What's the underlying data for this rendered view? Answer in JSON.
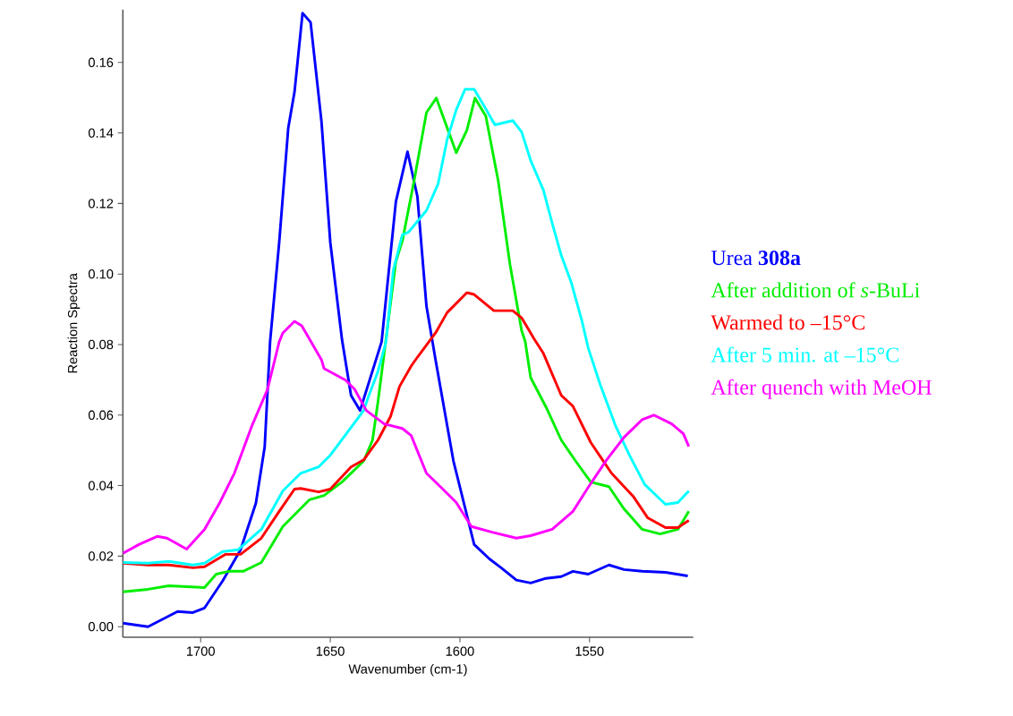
{
  "chart_data": {
    "type": "line",
    "xlabel": "Wavenumber (cm-1)",
    "ylabel": "Reaction Spectra",
    "xlim": [
      1730,
      1510
    ],
    "ylim": [
      -0.003,
      0.175
    ],
    "xticks": [
      1700,
      1650,
      1600,
      1550
    ],
    "yticks": [
      {
        "value": 0,
        "label": "0.00"
      },
      {
        "value": 0.02,
        "label": "0.02"
      },
      {
        "value": 0.04,
        "label": "0.04"
      },
      {
        "value": 0.06,
        "label": "0.06"
      },
      {
        "value": 0.08,
        "label": "0.08"
      },
      {
        "value": 0.1,
        "label": "0.10"
      },
      {
        "value": 0.12,
        "label": "0.12"
      },
      {
        "value": 0.14,
        "label": "0.14"
      },
      {
        "value": 0.16,
        "label": "0.16"
      }
    ],
    "legend": "right",
    "series": [
      {
        "name": "Urea **308a**",
        "color": "#0000ff",
        "x": [
          1730,
          1720.3,
          1708.9,
          1703,
          1698.5,
          1691.5,
          1684.6,
          1678.7,
          1675.3,
          1673.2,
          1669.7,
          1666.2,
          1663.8,
          1660.7,
          1657.6,
          1653.4,
          1650,
          1645.5,
          1642,
          1638.5,
          1630.2,
          1628,
          1624.7,
          1620.2,
          1616.4,
          1612.9,
          1609.4,
          1602.5,
          1594.5,
          1588.6,
          1584.1,
          1578.2,
          1572.7,
          1566.8,
          1560.9,
          1556.4,
          1550.5,
          1542.5,
          1536.7,
          1529.7,
          1520.7,
          1512.1
        ],
        "values": [
          0.001,
          0.0,
          0.0043,
          0.004,
          0.0053,
          0.013,
          0.0218,
          0.035,
          0.051,
          0.081,
          0.109,
          0.1415,
          0.1516,
          0.174,
          0.1714,
          0.1433,
          0.109,
          0.0815,
          0.0656,
          0.0613,
          0.0808,
          0.0967,
          0.1205,
          0.1347,
          0.122,
          0.0909,
          0.0757,
          0.047,
          0.0233,
          0.0192,
          0.0167,
          0.0132,
          0.0124,
          0.0137,
          0.0142,
          0.0157,
          0.0149,
          0.0175,
          0.0162,
          0.0157,
          0.0154,
          0.0144
        ]
      },
      {
        "name": "After addition of *s*-BuLi",
        "color": "#00ee00",
        "x": [
          1730,
          1720.3,
          1712.3,
          1698.5,
          1694,
          1689.1,
          1683.6,
          1676.6,
          1668.3,
          1658,
          1652.4,
          1645.5,
          1637.1,
          1633.7,
          1631.6,
          1624.7,
          1622.2,
          1617.7,
          1612.9,
          1609.1,
          1601.4,
          1597.3,
          1594.2,
          1590,
          1585.2,
          1580.7,
          1576.2,
          1574.8,
          1572.7,
          1566.8,
          1560.9,
          1555.4,
          1549.5,
          1542.5,
          1536.7,
          1529.7,
          1522.8,
          1515.9,
          1511.7
        ],
        "values": [
          0.0099,
          0.0106,
          0.0116,
          0.0111,
          0.0149,
          0.0157,
          0.0157,
          0.0182,
          0.0284,
          0.036,
          0.0372,
          0.041,
          0.047,
          0.0529,
          0.0638,
          0.1035,
          0.1094,
          0.1263,
          0.1458,
          0.1499,
          0.1344,
          0.1408,
          0.1499,
          0.1448,
          0.1263,
          0.1028,
          0.084,
          0.0808,
          0.0706,
          0.0623,
          0.0529,
          0.047,
          0.041,
          0.0397,
          0.0334,
          0.0276,
          0.0263,
          0.0276,
          0.0327
        ]
      },
      {
        "name": "Warmed to –15°C",
        "color": "#ff0000",
        "x": [
          1730,
          1720.3,
          1712.3,
          1703,
          1698.5,
          1690.5,
          1684.6,
          1676.6,
          1669.7,
          1663.8,
          1661.4,
          1654.5,
          1650,
          1642,
          1637.1,
          1631.6,
          1626.7,
          1623.3,
          1618.8,
          1616.3,
          1609.4,
          1604.9,
          1597.3,
          1594.5,
          1586.9,
          1579.6,
          1576.2,
          1571.3,
          1567.8,
          1560.9,
          1556.4,
          1549.5,
          1541.5,
          1533.2,
          1527.6,
          1520.7,
          1515.9,
          1511.7
        ],
        "values": [
          0.018,
          0.0175,
          0.0175,
          0.0167,
          0.017,
          0.0205,
          0.0205,
          0.0251,
          0.0327,
          0.039,
          0.0392,
          0.0382,
          0.039,
          0.0453,
          0.0473,
          0.0529,
          0.0597,
          0.0681,
          0.0739,
          0.0765,
          0.0833,
          0.0891,
          0.0947,
          0.0942,
          0.0896,
          0.0896,
          0.0876,
          0.0815,
          0.0775,
          0.0656,
          0.0625,
          0.0522,
          0.0435,
          0.037,
          0.0309,
          0.0281,
          0.0281,
          0.0301
        ]
      },
      {
        "name": "After 5 min. at –15°C",
        "color": "#00ffff",
        "x": [
          1730,
          1720.3,
          1712.3,
          1703,
          1698.5,
          1691.5,
          1685.6,
          1676.6,
          1668.3,
          1661.4,
          1654.5,
          1650,
          1643.1,
          1637.1,
          1635.1,
          1631.6,
          1628.5,
          1625.7,
          1622.2,
          1619.8,
          1612.9,
          1608.4,
          1604.9,
          1601.4,
          1598,
          1594.5,
          1590.4,
          1586.5,
          1579.6,
          1576.2,
          1572.7,
          1567.8,
          1564.4,
          1560.9,
          1557.1,
          1552.9,
          1550.5,
          1546,
          1540.1,
          1534.6,
          1528.7,
          1520.7,
          1515.9,
          1511.7
        ],
        "values": [
          0.0182,
          0.018,
          0.0185,
          0.0175,
          0.018,
          0.0213,
          0.0218,
          0.0276,
          0.0385,
          0.0435,
          0.0453,
          0.0486,
          0.0554,
          0.0613,
          0.0656,
          0.0724,
          0.0808,
          0.101,
          0.1111,
          0.1119,
          0.118,
          0.1256,
          0.1382,
          0.1466,
          0.1524,
          0.1524,
          0.1473,
          0.1423,
          0.1435,
          0.1403,
          0.1322,
          0.1238,
          0.1144,
          0.1053,
          0.0977,
          0.0866,
          0.079,
          0.0689,
          0.0572,
          0.0486,
          0.0403,
          0.0347,
          0.0352,
          0.0385
        ]
      },
      {
        "name": "After quench with MeOH",
        "color": "#ff00ff",
        "x": [
          1730,
          1723.8,
          1716.8,
          1713,
          1705.4,
          1698.5,
          1692.6,
          1687,
          1680.1,
          1674.2,
          1669.7,
          1668.3,
          1663.8,
          1661,
          1653.4,
          1652.4,
          1644.1,
          1640.6,
          1636.1,
          1629.2,
          1622.2,
          1618.8,
          1612.9,
          1607.3,
          1601.4,
          1595.6,
          1587.6,
          1578.2,
          1572.7,
          1564.4,
          1556.4,
          1550.5,
          1543.6,
          1536.7,
          1529.7,
          1525.2,
          1518.3,
          1513.8,
          1511.7
        ],
        "values": [
          0.0208,
          0.0233,
          0.0256,
          0.0251,
          0.022,
          0.0276,
          0.0352,
          0.0435,
          0.0572,
          0.0673,
          0.0808,
          0.0833,
          0.0866,
          0.0853,
          0.0757,
          0.0732,
          0.0699,
          0.0673,
          0.0613,
          0.0575,
          0.0562,
          0.0542,
          0.0435,
          0.0395,
          0.0352,
          0.0284,
          0.0268,
          0.0251,
          0.0258,
          0.0276,
          0.0327,
          0.0395,
          0.0471,
          0.0537,
          0.0587,
          0.06,
          0.0575,
          0.0547,
          0.0511
        ]
      }
    ]
  }
}
